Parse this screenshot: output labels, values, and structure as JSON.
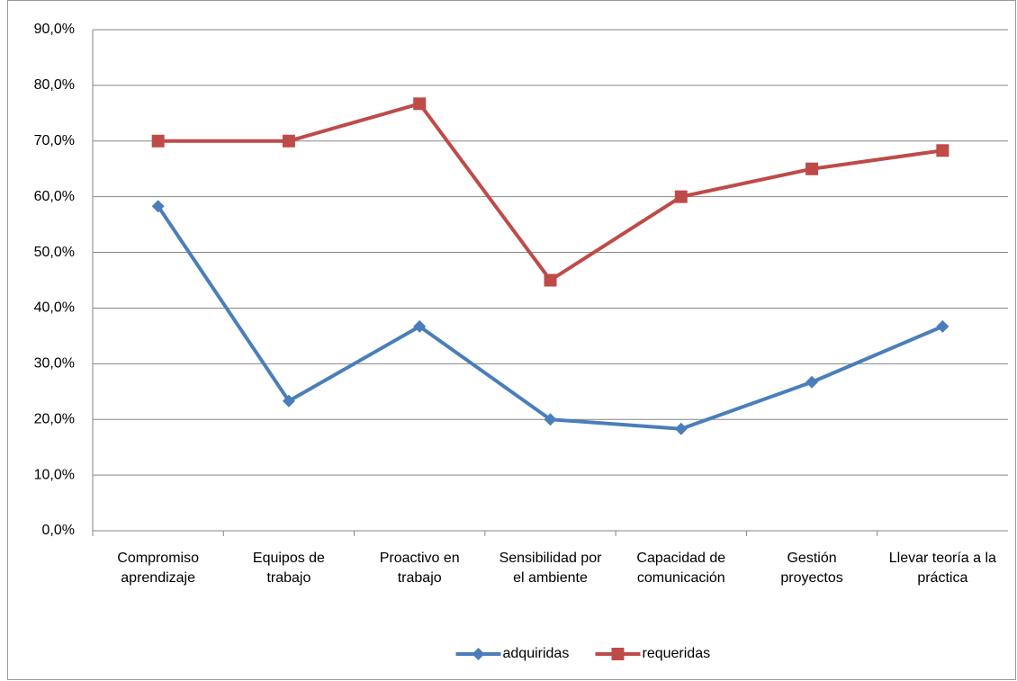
{
  "chart_data": {
    "type": "line",
    "categories": [
      "Compromiso aprendizaje",
      "Equipos de trabajo",
      "Proactivo en trabajo",
      "Sensibilidad por el ambiente",
      "Capacidad de comunicación",
      "Gestión proyectos",
      "Llevar teoría a la práctica"
    ],
    "series": [
      {
        "name": "adquiridas",
        "color": "#4a7ebb",
        "marker": "diamond",
        "values": [
          58.3,
          23.3,
          36.7,
          20.0,
          18.3,
          26.7,
          36.7
        ]
      },
      {
        "name": "requeridas",
        "color": "#be4b48",
        "marker": "square",
        "values": [
          70.0,
          70.0,
          76.7,
          45.0,
          60.0,
          65.0,
          68.3
        ]
      }
    ],
    "ylim": [
      0,
      90
    ],
    "yticks": [
      {
        "value": 0,
        "label": "0,0%"
      },
      {
        "value": 10,
        "label": "10,0%"
      },
      {
        "value": 20,
        "label": "20,0%"
      },
      {
        "value": 30,
        "label": "30,0%"
      },
      {
        "value": 40,
        "label": "40,0%"
      },
      {
        "value": 50,
        "label": "50,0%"
      },
      {
        "value": 60,
        "label": "60,0%"
      },
      {
        "value": 70,
        "label": "70,0%"
      },
      {
        "value": 80,
        "label": "80,0%"
      },
      {
        "value": 90,
        "label": "90,0%"
      }
    ],
    "grid": true,
    "legend": "bottom"
  }
}
